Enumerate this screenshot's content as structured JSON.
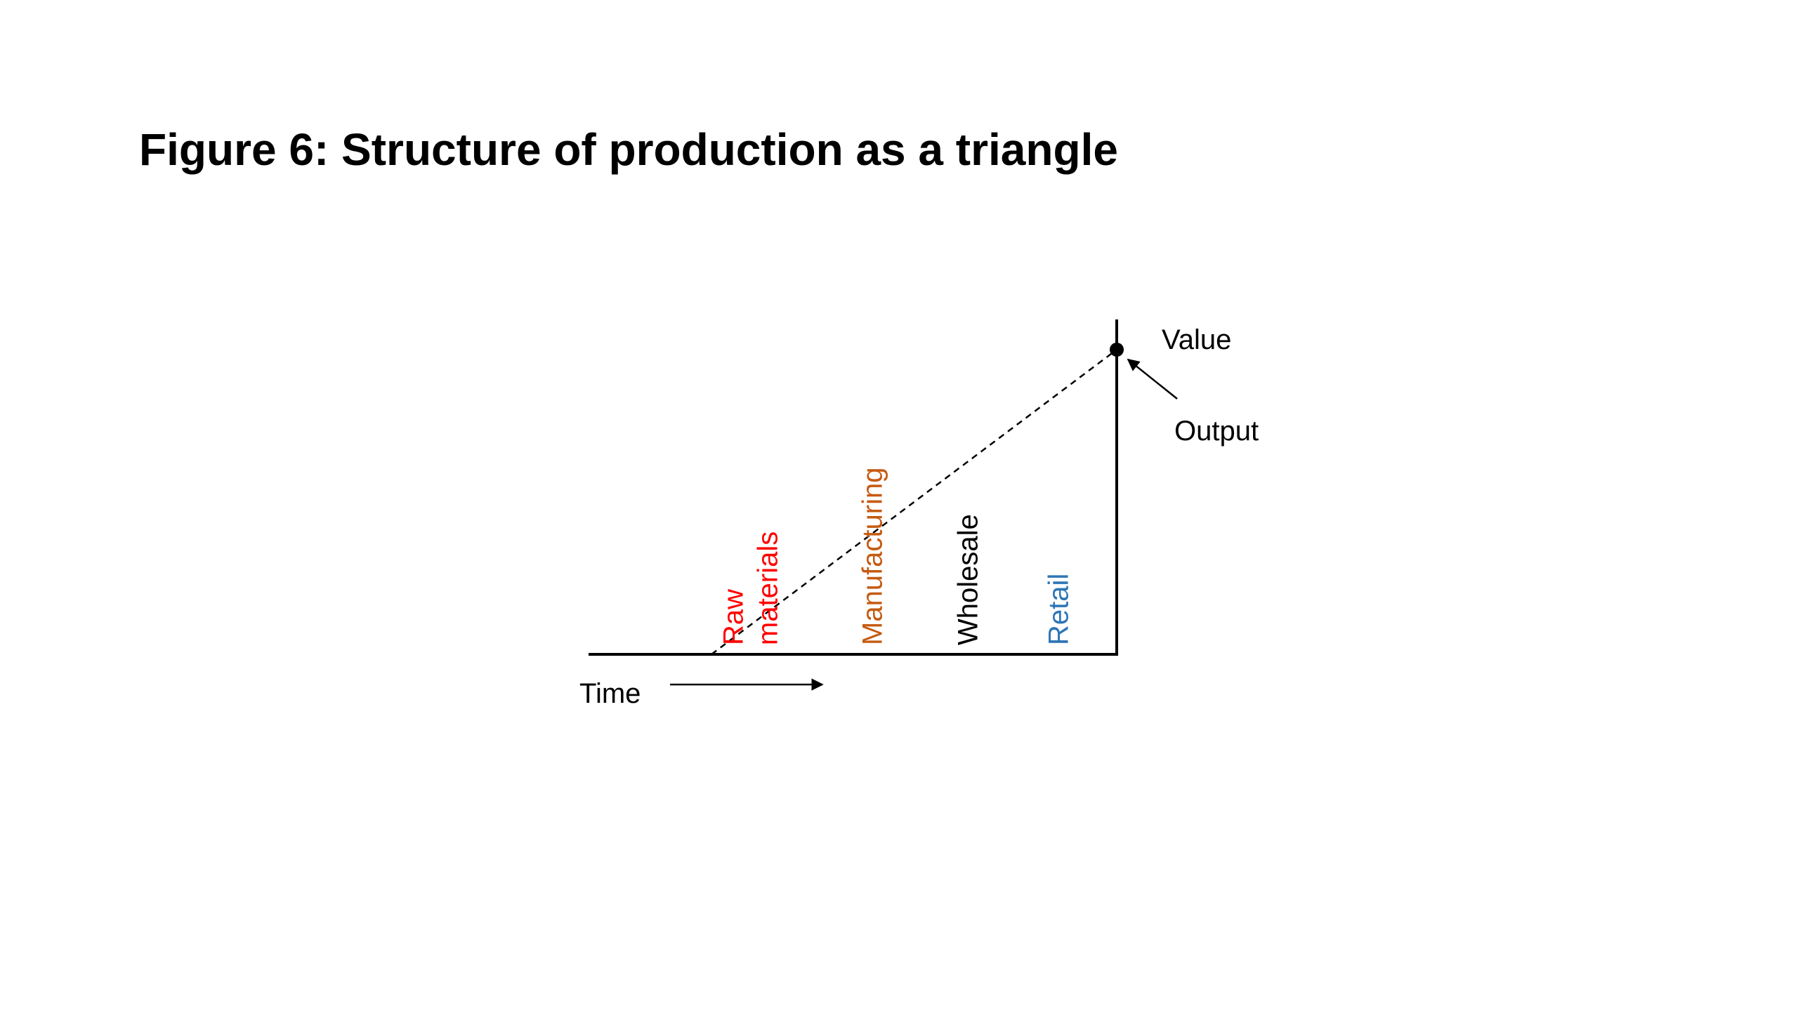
{
  "title": "Figure 6: Structure of production as a triangle",
  "value_axis_label": "Value",
  "time_axis_label": "Time",
  "output_label": "Output",
  "stages": [
    {
      "lines": [
        "Raw",
        "materials"
      ],
      "color": "#ff0000"
    },
    {
      "lines": [
        "Manufacturing"
      ],
      "color": "#c55a11"
    },
    {
      "lines": [
        "Wholesale"
      ],
      "color": "#000000"
    },
    {
      "lines": [
        "Retail"
      ],
      "color": "#2e75b6"
    }
  ]
}
